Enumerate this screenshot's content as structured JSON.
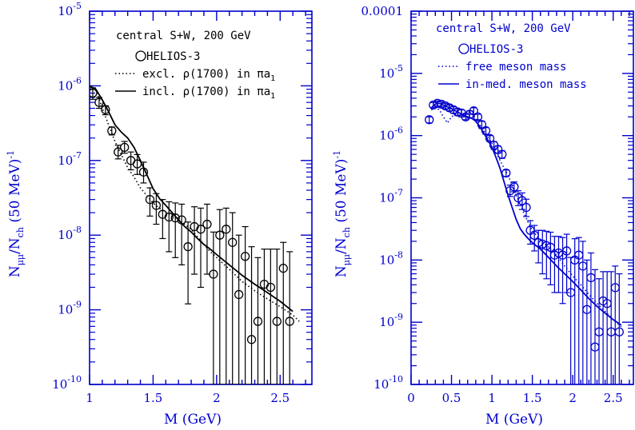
{
  "colors": {
    "axis": "#0000cc",
    "left_data": "#000000",
    "right_data": "#0000cc"
  },
  "chart_data": [
    {
      "type": "scatter",
      "title": "",
      "xlabel": "M (GeV)",
      "ylabel": "N_μμ/N_ch (50 MeV)^-1",
      "ylabel_main": "N",
      "ylabel_sub1": "μμ",
      "ylabel_mid": "/N",
      "ylabel_sub2": "ch",
      "ylabel_tail": " (50 MeV)",
      "ylabel_sup": "-1",
      "xlim": [
        1.0,
        2.75
      ],
      "ylim": [
        1e-10,
        1e-05
      ],
      "yscale": "log",
      "x_ticks": [
        1,
        1.5,
        2,
        2.5
      ],
      "x_tick_labels": [
        "1",
        "1.5",
        "2",
        "2.5"
      ],
      "y_ticks": [
        1e-10,
        1e-09,
        1e-08,
        1e-07,
        1e-06,
        1e-05
      ],
      "y_tick_labels": [
        {
          "base": "10",
          "exp": "-10"
        },
        {
          "base": "10",
          "exp": "-9"
        },
        {
          "base": "10",
          "exp": "-8"
        },
        {
          "base": "10",
          "exp": "-7"
        },
        {
          "base": "10",
          "exp": "-6"
        },
        {
          "base": "10",
          "exp": "-5"
        }
      ],
      "annotation_title": "central S+W, 200 GeV",
      "legend": [
        {
          "marker": "circle",
          "label": "HELIOS-3"
        },
        {
          "line": "dotted",
          "label": "excl. ρ(1700) in πa",
          "sub": "1"
        },
        {
          "line": "solid",
          "label": "incl. ρ(1700) in πa",
          "sub": "1"
        }
      ],
      "series": [
        {
          "name": "HELIOS-3",
          "kind": "points",
          "x": [
            1.025,
            1.075,
            1.125,
            1.175,
            1.225,
            1.275,
            1.325,
            1.375,
            1.425,
            1.475,
            1.525,
            1.575,
            1.625,
            1.675,
            1.725,
            1.775,
            1.825,
            1.875,
            1.925,
            1.975,
            2.025,
            2.075,
            2.125,
            2.175,
            2.225,
            2.275,
            2.325,
            2.375,
            2.425,
            2.475,
            2.525,
            2.575
          ],
          "y": [
            8e-07,
            6e-07,
            4.8e-07,
            2.5e-07,
            1.3e-07,
            1.5e-07,
            1e-07,
            9e-08,
            7e-08,
            3e-08,
            2.5e-08,
            1.9e-08,
            1.75e-08,
            1.7e-08,
            1.6e-08,
            7e-09,
            1.3e-08,
            1.2e-08,
            1.4e-08,
            3e-09,
            1e-08,
            1.2e-08,
            8e-09,
            1.6e-09,
            5.2e-09,
            4e-10,
            7e-10,
            2.2e-09,
            2e-09,
            7e-10,
            3.6e-09,
            7e-10
          ],
          "err_lo": [
            6.6e-07,
            5e-07,
            4.1e-07,
            2.2e-07,
            1.05e-07,
            1.25e-07,
            7.5e-08,
            6.5e-08,
            5e-08,
            1.8e-08,
            1.4e-08,
            9e-09,
            6e-09,
            5e-09,
            4e-09,
            1.2e-09,
            3e-09,
            2e-09,
            3e-09,
            1e-10,
            1e-10,
            1e-10,
            1e-10,
            1e-10,
            1e-10,
            1e-10,
            1e-10,
            1e-10,
            1e-10,
            1e-10,
            1e-10,
            1e-10
          ],
          "err_hi": [
            9.4e-07,
            7e-07,
            5.4e-07,
            2.8e-07,
            1.6e-07,
            1.8e-07,
            1.3e-07,
            1.2e-07,
            9.5e-08,
            4.3e-08,
            3.6e-08,
            3e-08,
            2.8e-08,
            2.7e-08,
            2.6e-08,
            1.5e-08,
            2.4e-08,
            2.3e-08,
            2.6e-08,
            1.1e-08,
            2.2e-08,
            2.3e-08,
            2e-08,
            1e-08,
            1.3e-08,
            7e-09,
            5e-09,
            6.5e-09,
            6.5e-09,
            6.5e-09,
            8e-09,
            6e-09
          ]
        },
        {
          "name": "excl. ρ(1700) in πa1",
          "kind": "line",
          "dash": "dotted",
          "x": [
            1.0,
            1.05,
            1.1,
            1.15,
            1.2,
            1.25,
            1.3,
            1.35,
            1.4,
            1.45,
            1.5,
            1.55,
            1.6,
            1.65,
            1.7,
            1.75,
            1.8,
            1.85,
            1.9,
            1.95,
            2.0,
            2.1,
            2.2,
            2.3,
            2.4,
            2.5,
            2.6,
            2.65
          ],
          "y": [
            1e-06,
            9e-07,
            5e-07,
            3e-07,
            1.8e-07,
            1.2e-07,
            8e-08,
            6e-08,
            4.3e-08,
            3.4e-08,
            2.7e-08,
            2.3e-08,
            2e-08,
            1.8e-08,
            1.6e-08,
            1.4e-08,
            1.2e-08,
            9.5e-09,
            7.5e-09,
            6e-09,
            5e-09,
            3.5e-09,
            2.4e-09,
            1.8e-09,
            1.4e-09,
            1.1e-09,
            8.5e-10,
            7e-10
          ]
        },
        {
          "name": "incl. ρ(1700) in πa1",
          "kind": "line",
          "dash": "solid",
          "x": [
            1.0,
            1.05,
            1.1,
            1.15,
            1.2,
            1.25,
            1.3,
            1.35,
            1.4,
            1.45,
            1.5,
            1.55,
            1.6,
            1.65,
            1.7,
            1.75,
            1.8,
            1.85,
            1.9,
            1.95,
            2.0,
            2.1,
            2.2,
            2.3,
            2.4,
            2.5,
            2.6
          ],
          "y": [
            1e-06,
            9e-07,
            6.5e-07,
            4.5e-07,
            3e-07,
            2.4e-07,
            2e-07,
            1.5e-07,
            1e-07,
            6.5e-08,
            4.2e-08,
            3.1e-08,
            2.5e-08,
            2e-08,
            1.6e-08,
            1.3e-08,
            1.1e-08,
            9e-09,
            7.5e-09,
            6.5e-09,
            5.5e-09,
            4e-09,
            2.9e-09,
            2.2e-09,
            1.7e-09,
            1.3e-09,
            9.5e-10
          ]
        }
      ]
    },
    {
      "type": "scatter",
      "title": "",
      "xlabel": "M (GeV)",
      "ylabel": "N_μμ/N_ch (50 MeV)^-1",
      "ylabel_main": "N",
      "ylabel_sub1": "μμ",
      "ylabel_mid": "/N",
      "ylabel_sub2": "ch",
      "ylabel_tail": " (50 MeV)",
      "ylabel_sup": "-1",
      "xlim": [
        0.0,
        2.75
      ],
      "ylim": [
        1e-10,
        0.0001
      ],
      "yscale": "log",
      "x_ticks": [
        0,
        0.5,
        1,
        1.5,
        2,
        2.5
      ],
      "x_tick_labels": [
        "0",
        "0.5",
        "1",
        "1.5",
        "2",
        "2.5"
      ],
      "y_ticks": [
        1e-10,
        1e-09,
        1e-08,
        1e-07,
        1e-06,
        1e-05,
        0.0001
      ],
      "y_tick_labels": [
        {
          "base": "10",
          "exp": "-10"
        },
        {
          "base": "10",
          "exp": "-9"
        },
        {
          "base": "10",
          "exp": "-8"
        },
        {
          "base": "10",
          "exp": "-7"
        },
        {
          "base": "10",
          "exp": "-6"
        },
        {
          "base": "10",
          "exp": "-5"
        },
        {
          "base": "0.0001",
          "exp": ""
        }
      ],
      "annotation_title": "central S+W, 200 GeV",
      "legend": [
        {
          "marker": "circle",
          "label": "HELIOS-3"
        },
        {
          "line": "dotted",
          "label": "free meson mass"
        },
        {
          "line": "solid",
          "label": "in-med. meson mass"
        }
      ],
      "series": [
        {
          "name": "HELIOS-3",
          "kind": "points",
          "x": [
            0.225,
            0.275,
            0.325,
            0.375,
            0.425,
            0.475,
            0.525,
            0.575,
            0.625,
            0.675,
            0.725,
            0.775,
            0.825,
            0.875,
            0.925,
            0.975,
            1.025,
            1.075,
            1.125,
            1.175,
            1.225,
            1.275,
            1.325,
            1.375,
            1.425,
            1.475,
            1.525,
            1.575,
            1.625,
            1.675,
            1.725,
            1.775,
            1.825,
            1.875,
            1.925,
            1.975,
            2.025,
            2.075,
            2.125,
            2.175,
            2.225,
            2.275,
            2.325,
            2.375,
            2.425,
            2.475,
            2.525,
            2.575
          ],
          "y": [
            1.8e-06,
            3.1e-06,
            3.3e-06,
            3.2e-06,
            3e-06,
            2.8e-06,
            2.6e-06,
            2.4e-06,
            2.3e-06,
            2e-06,
            2.2e-06,
            2.5e-06,
            2e-06,
            1.5e-06,
            1.2e-06,
            9e-07,
            7e-07,
            6e-07,
            5e-07,
            2.5e-07,
            1.3e-07,
            1.5e-07,
            1e-07,
            9e-08,
            7e-08,
            3e-08,
            2.5e-08,
            1.9e-08,
            1.8e-08,
            1.7e-08,
            1.6e-08,
            1.2e-08,
            1.3e-08,
            1.2e-08,
            1.4e-08,
            3e-09,
            1e-08,
            1.2e-08,
            8e-09,
            1.6e-09,
            5.2e-09,
            4e-10,
            7e-10,
            2.2e-09,
            2e-09,
            7e-10,
            3.6e-09,
            7e-10
          ],
          "err_lo": [
            1.6e-06,
            2.8e-06,
            3e-06,
            2.9e-06,
            2.7e-06,
            2.5e-06,
            2.3e-06,
            2.1e-06,
            2e-06,
            1.8e-06,
            1.9e-06,
            2.2e-06,
            1.8e-06,
            1.3e-06,
            1.05e-06,
            8e-07,
            6e-07,
            5.2e-07,
            4.3e-07,
            2.2e-07,
            1.05e-07,
            1.25e-07,
            7.5e-08,
            6.5e-08,
            5e-08,
            1.8e-08,
            1.4e-08,
            9e-09,
            6e-09,
            5e-09,
            4e-09,
            3e-09,
            3e-09,
            2e-09,
            3e-09,
            1e-10,
            1e-10,
            1e-10,
            1e-10,
            1e-10,
            1e-10,
            1e-10,
            1e-10,
            1e-10,
            1e-10,
            1e-10,
            1e-10,
            1e-10
          ],
          "err_hi": [
            2e-06,
            3.4e-06,
            3.6e-06,
            3.5e-06,
            3.3e-06,
            3.1e-06,
            2.9e-06,
            2.7e-06,
            2.6e-06,
            2.2e-06,
            2.5e-06,
            2.8e-06,
            2.2e-06,
            1.7e-06,
            1.35e-06,
            1e-06,
            8e-07,
            6.8e-07,
            5.7e-07,
            2.8e-07,
            1.6e-07,
            1.8e-07,
            1.3e-07,
            1.2e-07,
            9.5e-08,
            4.3e-08,
            3.6e-08,
            3e-08,
            3e-08,
            2.9e-08,
            2.8e-08,
            2.4e-08,
            2.4e-08,
            2.3e-08,
            2.6e-08,
            1.1e-08,
            2.2e-08,
            2.3e-08,
            2e-08,
            1e-08,
            1.3e-08,
            7e-09,
            5e-09,
            6.5e-09,
            6.5e-09,
            6.5e-09,
            8e-09,
            6e-09
          ]
        },
        {
          "name": "free meson mass",
          "kind": "line",
          "dash": "dotted",
          "x": [
            0.25,
            0.3,
            0.35,
            0.4,
            0.45,
            0.5,
            0.55,
            0.6,
            0.65,
            0.7,
            0.75,
            0.8,
            0.85,
            0.9,
            0.95,
            1.0,
            1.05,
            1.1,
            1.15,
            1.2,
            1.25,
            1.3,
            1.35,
            1.4,
            1.45,
            1.5,
            1.6,
            1.7,
            1.8,
            1.9,
            2.0,
            2.1,
            2.2,
            2.3,
            2.4,
            2.5,
            2.6
          ],
          "y": [
            2.6e-06,
            2.8e-06,
            2.6e-06,
            2e-06,
            1.6e-06,
            2e-06,
            2.2e-06,
            2.1e-06,
            2.2e-06,
            2.4e-06,
            2.3e-06,
            1.9e-06,
            1.5e-06,
            1.2e-06,
            9.5e-07,
            7.5e-07,
            5.5e-07,
            4e-07,
            3e-07,
            2.3e-07,
            1.6e-07,
            1.1e-07,
            8e-08,
            5.5e-08,
            4e-08,
            3e-08,
            2.1e-08,
            1.6e-08,
            1.2e-08,
            8e-09,
            5.5e-09,
            4e-09,
            2.8e-09,
            2e-09,
            1.5e-09,
            1.1e-09,
            8.5e-10
          ]
        },
        {
          "name": "in-med. meson mass",
          "kind": "line",
          "dash": "solid",
          "x": [
            0.25,
            0.3,
            0.35,
            0.4,
            0.45,
            0.5,
            0.55,
            0.6,
            0.65,
            0.7,
            0.75,
            0.8,
            0.85,
            0.9,
            0.95,
            1.0,
            1.05,
            1.1,
            1.15,
            1.2,
            1.25,
            1.3,
            1.35,
            1.4,
            1.45,
            1.5,
            1.6,
            1.7,
            1.8,
            1.9,
            2.0,
            2.1,
            2.2,
            2.3,
            2.4,
            2.5,
            2.6
          ],
          "y": [
            2.8e-06,
            3.2e-06,
            3.3e-06,
            3.1e-06,
            2.9e-06,
            2.7e-06,
            2.5e-06,
            2.3e-06,
            2.1e-06,
            2e-06,
            1.9e-06,
            1.7e-06,
            1.4e-06,
            1.1e-06,
            8.5e-07,
            6.5e-07,
            4.5e-07,
            3e-07,
            1.8e-07,
            1.1e-07,
            7e-08,
            4.5e-08,
            3.2e-08,
            2.6e-08,
            2.2e-08,
            1.9e-08,
            1.5e-08,
            1.1e-08,
            8e-09,
            6e-09,
            4.5e-09,
            3.3e-09,
            2.4e-09,
            1.8e-09,
            1.4e-09,
            1.1e-09,
            9e-10
          ]
        }
      ]
    }
  ]
}
